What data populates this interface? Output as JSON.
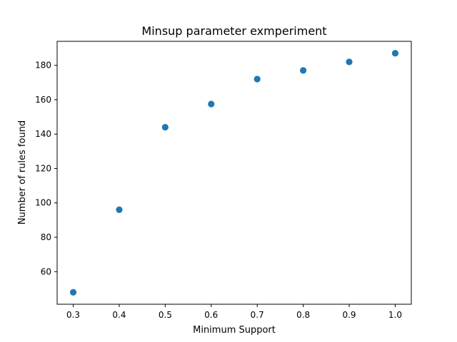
{
  "chart_data": {
    "type": "scatter",
    "title": "Minsup parameter exmperiment",
    "xlabel": "Minimum Support",
    "ylabel": "Number of rules found",
    "series": [
      {
        "x": [
          0.3,
          0.4,
          0.5,
          0.6,
          0.7,
          0.8,
          0.9,
          1.0
        ],
        "y": [
          48,
          96,
          144,
          157.5,
          172,
          177,
          182,
          187
        ],
        "color": "#1f77b4"
      }
    ],
    "xlim": [
      0.265,
      1.035
    ],
    "ylim": [
      41.05,
      193.95
    ],
    "xticks": [
      0.3,
      0.4,
      0.5,
      0.6,
      0.7,
      0.8,
      0.9,
      1.0
    ],
    "xtick_labels": [
      "0.3",
      "0.4",
      "0.5",
      "0.6",
      "0.7",
      "0.8",
      "0.9",
      "1.0"
    ],
    "yticks": [
      60,
      80,
      100,
      120,
      140,
      160,
      180
    ],
    "ytick_labels": [
      "60",
      "80",
      "100",
      "120",
      "140",
      "160",
      "180"
    ],
    "grid": false,
    "legend": "none"
  }
}
